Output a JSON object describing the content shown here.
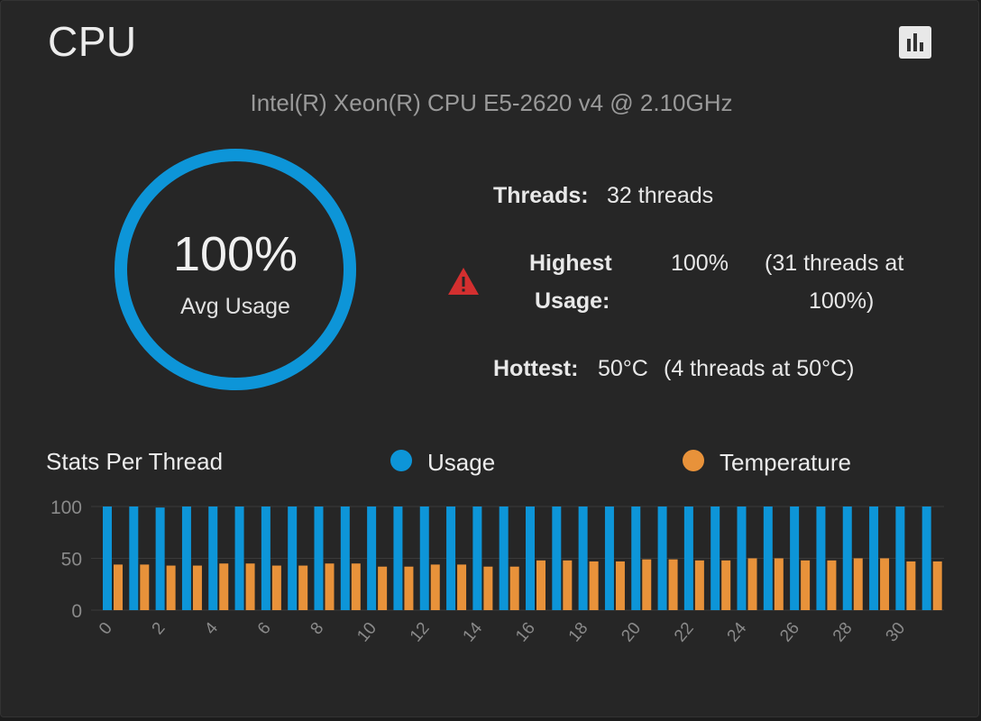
{
  "card": {
    "title": "CPU",
    "chart_toggle_icon": "bar-chart-icon",
    "cpu_model": "Intel(R) Xeon(R) CPU E5-2620 v4 @ 2.10GHz"
  },
  "gauge": {
    "value": "100%",
    "label": "Avg Usage",
    "fill_fraction": 1.0,
    "color": "#0d95d8"
  },
  "stats": {
    "threads_label": "Threads:",
    "threads_value": "32 threads",
    "highest_label_line1": "Highest",
    "highest_label_line2": "Usage:",
    "highest_value": "100%",
    "highest_detail_line1": "(31 threads at",
    "highest_detail_line2": "100%)",
    "hottest_label": "Hottest:",
    "hottest_value": "50°C",
    "hottest_detail": "(4 threads at 50°C)",
    "warning_icon": "warning-icon",
    "warning_color": "#d32f2f"
  },
  "legend": {
    "title": "Stats Per Thread",
    "usage_label": "Usage",
    "temperature_label": "Temperature",
    "usage_color": "#0d95d8",
    "temperature_color": "#e8923a"
  },
  "chart_data": {
    "type": "bar",
    "categories": [
      0,
      1,
      2,
      3,
      4,
      5,
      6,
      7,
      8,
      9,
      10,
      11,
      12,
      13,
      14,
      15,
      16,
      17,
      18,
      19,
      20,
      21,
      22,
      23,
      24,
      25,
      26,
      27,
      28,
      29,
      30,
      31
    ],
    "x_tick_labels": [
      "0",
      "2",
      "4",
      "6",
      "8",
      "10",
      "12",
      "14",
      "16",
      "18",
      "20",
      "22",
      "24",
      "26",
      "28",
      "30"
    ],
    "y_ticks": [
      0,
      50,
      100
    ],
    "ylim": [
      0,
      100
    ],
    "series": [
      {
        "name": "Usage",
        "color": "#0d95d8",
        "values": [
          100,
          100,
          99,
          100,
          100,
          100,
          100,
          100,
          100,
          100,
          100,
          100,
          100,
          100,
          100,
          100,
          100,
          100,
          100,
          100,
          100,
          100,
          100,
          100,
          100,
          100,
          100,
          100,
          100,
          100,
          100,
          100
        ]
      },
      {
        "name": "Temperature",
        "color": "#e8923a",
        "values": [
          44,
          44,
          43,
          43,
          45,
          45,
          43,
          43,
          45,
          45,
          42,
          42,
          44,
          44,
          42,
          42,
          48,
          48,
          47,
          47,
          49,
          49,
          48,
          48,
          50,
          50,
          48,
          48,
          50,
          50,
          47,
          47
        ]
      }
    ]
  }
}
